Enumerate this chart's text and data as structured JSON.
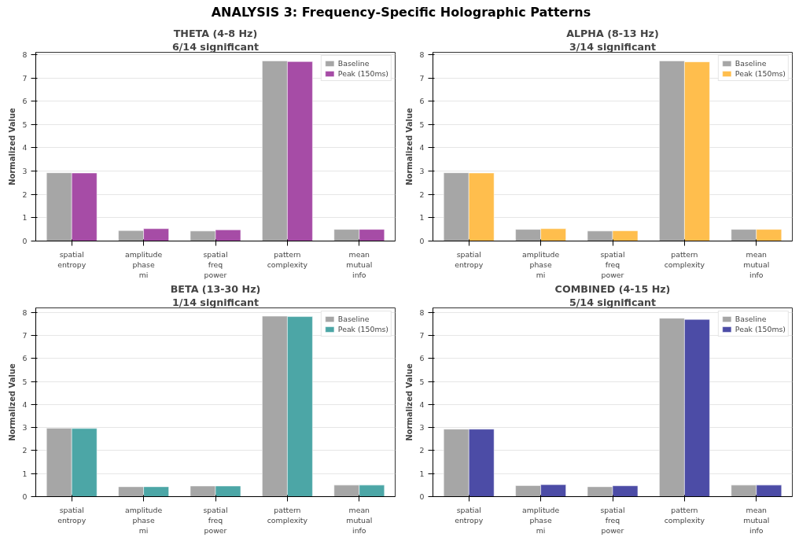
{
  "chart_data": [
    {
      "type": "bar",
      "title": "THETA (4-8 Hz)",
      "subtitle": "6/14 significant",
      "annotations": [
        "ANALYSIS 3: Frequency-Specific Holographic Patterns"
      ],
      "ylabel": "Normalized Value",
      "categories": [
        "spatial\nentropy",
        "amplitude\nphase\nmi",
        "spatial\nfreq\npower",
        "pattern\ncomplexity",
        "mean\nmutual\ninfo"
      ],
      "series": [
        {
          "name": "Baseline",
          "color": "#a6a6a6",
          "values": [
            2.93,
            0.45,
            0.43,
            7.73,
            0.5
          ]
        },
        {
          "name": "Peak (150ms)",
          "color": "#a64ca6",
          "values": [
            2.92,
            0.53,
            0.48,
            7.7,
            0.5
          ]
        }
      ],
      "ylim": [
        0,
        8.1
      ],
      "yticks": [
        0,
        1,
        2,
        3,
        4,
        5,
        6,
        7,
        8
      ],
      "grid": "y",
      "legend": "top right"
    },
    {
      "type": "bar",
      "title": "ALPHA (8-13 Hz)",
      "subtitle": "3/14 significant",
      "ylabel": "Normalized Value",
      "categories": [
        "spatial\nentropy",
        "amplitude\nphase\nmi",
        "spatial\nfreq\npower",
        "pattern\ncomplexity",
        "mean\nmutual\ninfo"
      ],
      "series": [
        {
          "name": "Baseline",
          "color": "#a6a6a6",
          "values": [
            2.93,
            0.5,
            0.43,
            7.73,
            0.5
          ]
        },
        {
          "name": "Peak (150ms)",
          "color": "#ffbe4d",
          "values": [
            2.92,
            0.53,
            0.44,
            7.69,
            0.5
          ]
        }
      ],
      "ylim": [
        0,
        8.1
      ],
      "yticks": [
        0,
        1,
        2,
        3,
        4,
        5,
        6,
        7,
        8
      ],
      "grid": "y",
      "legend": "top right"
    },
    {
      "type": "bar",
      "title": "BETA (13-30 Hz)",
      "subtitle": "1/14 significant",
      "ylabel": "Normalized Value",
      "categories": [
        "spatial\nentropy",
        "amplitude\nphase\nmi",
        "spatial\nfreq\npower",
        "pattern\ncomplexity",
        "mean\nmutual\ninfo"
      ],
      "series": [
        {
          "name": "Baseline",
          "color": "#a6a6a6",
          "values": [
            2.97,
            0.43,
            0.46,
            7.84,
            0.5
          ]
        },
        {
          "name": "Peak (150ms)",
          "color": "#4ca6a6",
          "values": [
            2.96,
            0.43,
            0.46,
            7.82,
            0.5
          ]
        }
      ],
      "ylim": [
        0,
        8.2
      ],
      "yticks": [
        0,
        1,
        2,
        3,
        4,
        5,
        6,
        7,
        8
      ],
      "grid": "y",
      "legend": "top right"
    },
    {
      "type": "bar",
      "title": "COMBINED (4-15 Hz)",
      "subtitle": "5/14 significant",
      "ylabel": "Normalized Value",
      "categories": [
        "spatial\nentropy",
        "amplitude\nphase\nmi",
        "spatial\nfreq\npower",
        "pattern\ncomplexity",
        "mean\nmutual\ninfo"
      ],
      "series": [
        {
          "name": "Baseline",
          "color": "#a6a6a6",
          "values": [
            2.93,
            0.48,
            0.43,
            7.75,
            0.5
          ]
        },
        {
          "name": "Peak (150ms)",
          "color": "#4c4ca6",
          "values": [
            2.93,
            0.52,
            0.47,
            7.7,
            0.5
          ]
        }
      ],
      "ylim": [
        0,
        8.2
      ],
      "yticks": [
        0,
        1,
        2,
        3,
        4,
        5,
        6,
        7,
        8
      ],
      "grid": "y",
      "legend": "top right"
    }
  ]
}
